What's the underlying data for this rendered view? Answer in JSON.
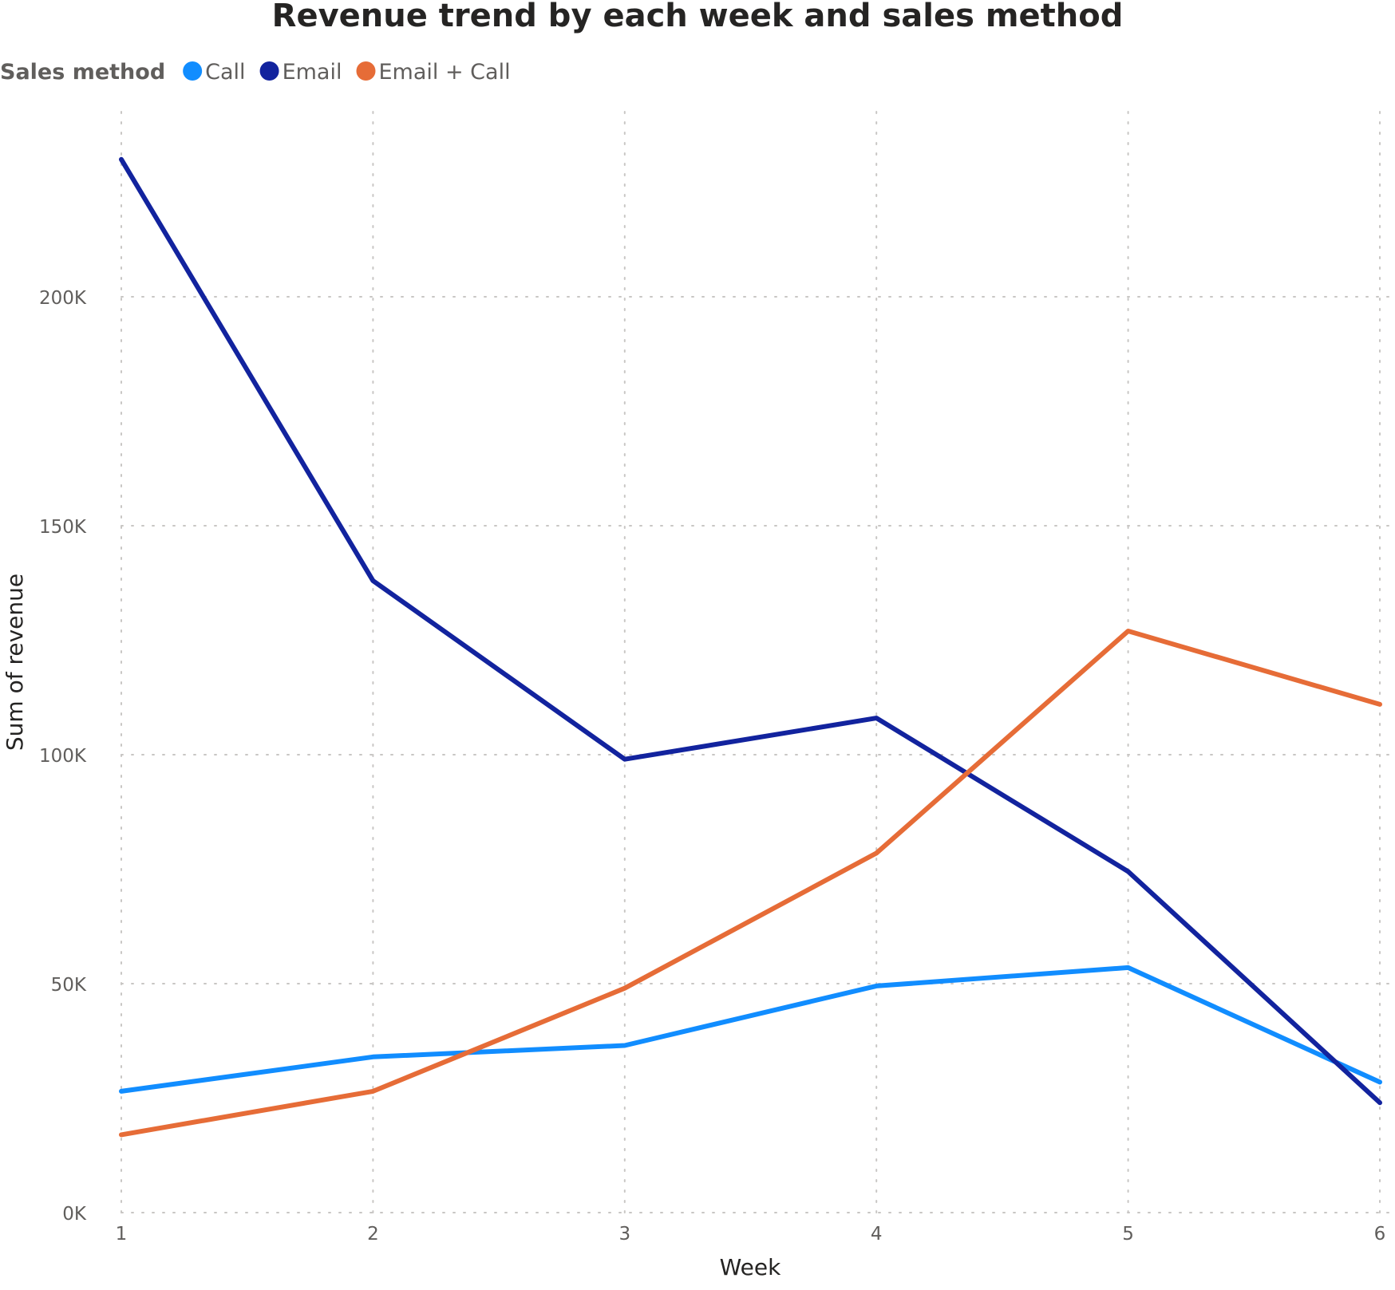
{
  "chart_data": {
    "type": "line",
    "title": "Revenue trend by each week and sales method",
    "xlabel": "Week",
    "ylabel": "Sum of revenue",
    "legend_title": "Sales method",
    "legend_position": "top-left",
    "grid": true,
    "categories": [
      1,
      2,
      3,
      4,
      5,
      6
    ],
    "x_tick_labels": [
      "1",
      "2",
      "3",
      "4",
      "5",
      "6"
    ],
    "ylim": [
      0,
      240000
    ],
    "y_ticks": [
      0,
      50000,
      100000,
      150000,
      200000
    ],
    "y_tick_labels": [
      "0K",
      "50K",
      "100K",
      "150K",
      "200K"
    ],
    "series": [
      {
        "name": "Call",
        "color": "#118dff",
        "values": [
          26500,
          34000,
          36500,
          49500,
          53500,
          28500
        ]
      },
      {
        "name": "Email",
        "color": "#12239e",
        "values": [
          230000,
          138000,
          99000,
          108000,
          74500,
          24000
        ]
      },
      {
        "name": "Email + Call",
        "color": "#e66c37",
        "values": [
          17000,
          26500,
          49000,
          78500,
          127000,
          111000
        ]
      }
    ]
  }
}
